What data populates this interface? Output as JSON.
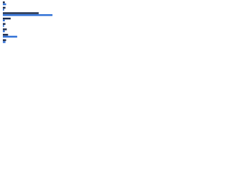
{
  "chart_data": {
    "type": "bar",
    "orientation": "horizontal",
    "categories": [
      null,
      null,
      null,
      null,
      null,
      null,
      null,
      null
    ],
    "series": [
      {
        "color": "#1b2a4a",
        "values": [
          3,
          4,
          55,
          12,
          4,
          6,
          8,
          5
        ]
      },
      {
        "color": "#2e6fd6",
        "values": [
          5,
          2,
          76,
          3,
          2,
          3,
          22,
          4
        ]
      }
    ],
    "xlim": [
      0,
      100
    ]
  }
}
